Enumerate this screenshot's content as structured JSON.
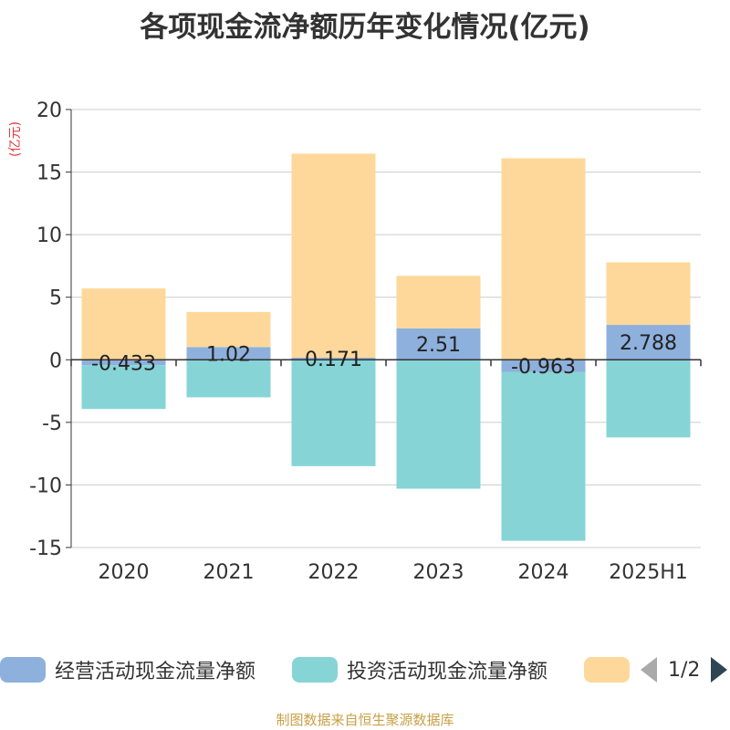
{
  "chart_data": {
    "type": "bar",
    "stacked": true,
    "title": "各项现金流净额历年变化情况(亿元)",
    "ylabel": "(亿元)",
    "categories": [
      "2020",
      "2021",
      "2022",
      "2023",
      "2024",
      "2025H1"
    ],
    "ylim": [
      -15,
      20
    ],
    "yticks": [
      20,
      15,
      10,
      5,
      0,
      -5,
      -10,
      -15
    ],
    "grid": true,
    "series": [
      {
        "name": "经营活动现金流量净额",
        "color": "#8eb0dc",
        "values": [
          -0.433,
          1.02,
          0.171,
          2.51,
          -0.963,
          2.788
        ],
        "labels": [
          "-0.433",
          "1.02",
          "0.171",
          "2.51",
          "-0.963",
          "2.788"
        ]
      },
      {
        "name": "投资活动现金流量净额",
        "color": "#86d4d6",
        "values": [
          -3.5,
          -3.0,
          -8.5,
          -10.3,
          -13.5,
          -6.2
        ]
      },
      {
        "name": "",
        "color": "#fed89a",
        "values": [
          5.7,
          2.8,
          16.3,
          4.2,
          16.1,
          5.0
        ]
      }
    ],
    "legend": {
      "position": "bottom",
      "page": "1/2"
    }
  },
  "footer": "制图数据来自恒生聚源数据库"
}
